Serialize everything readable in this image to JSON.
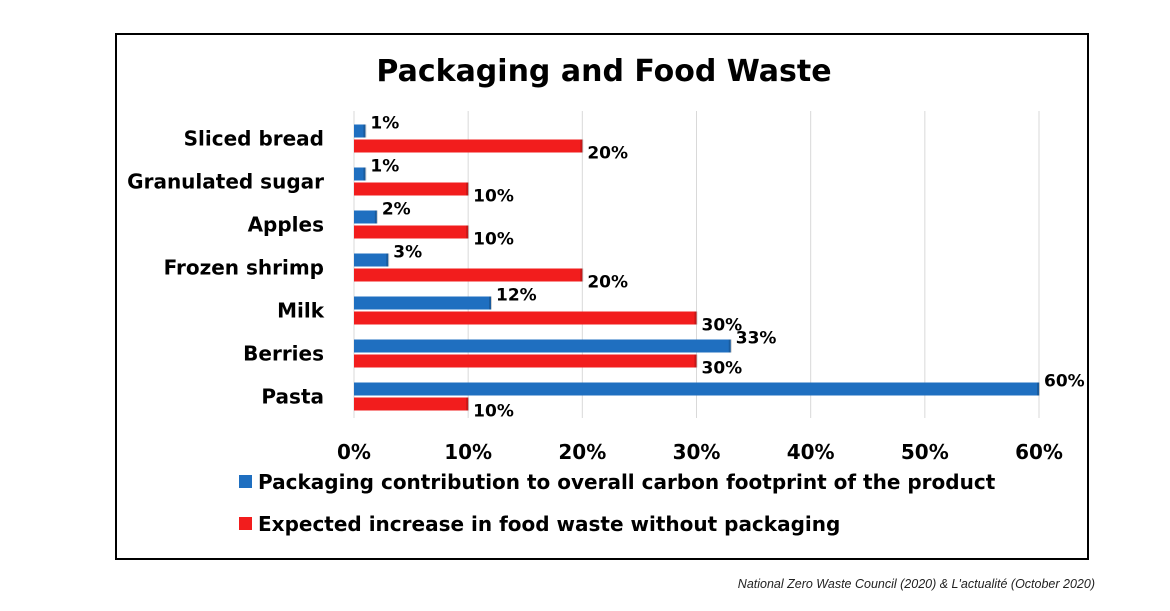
{
  "colors": {
    "series1": "#1f6fc0",
    "series2": "#f21d1d",
    "grid": "#d9d9d9"
  },
  "chart_data": {
    "type": "bar",
    "orientation": "horizontal",
    "title": "Packaging and Food Waste",
    "categories": [
      "Sliced bread",
      "Granulated sugar",
      "Apples",
      "Frozen shrimp",
      "Milk",
      "Berries",
      "Pasta"
    ],
    "series": [
      {
        "name": "Packaging contribution to overall carbon footprint of the product",
        "values": [
          1,
          1,
          2,
          3,
          12,
          33,
          60
        ],
        "labels": [
          "1%",
          "1%",
          "2%",
          "3%",
          "12%",
          "33%",
          "60%"
        ]
      },
      {
        "name": "Expected increase in food waste without packaging",
        "values": [
          20,
          10,
          10,
          20,
          30,
          30,
          10
        ],
        "labels": [
          "20%",
          "10%",
          "10%",
          "20%",
          "30%",
          "30%",
          "10%"
        ]
      }
    ],
    "xlim": [
      0,
      60
    ],
    "xticks": [
      "0%",
      "10%",
      "20%",
      "30%",
      "40%",
      "50%",
      "60%"
    ],
    "grid": true,
    "legend_position": "bottom"
  },
  "source_note": "National Zero Waste Council (2020) & L'actualité (October 2020)"
}
